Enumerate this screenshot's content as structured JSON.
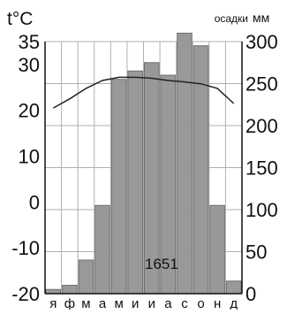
{
  "chart_data": {
    "type": "bar",
    "categories": [
      "я",
      "ф",
      "м",
      "а",
      "м",
      "и",
      "и",
      "а",
      "с",
      "о",
      "н",
      "д"
    ],
    "left_axis": {
      "label": "t°C",
      "min": -20,
      "max": 35,
      "ticks": [
        "35",
        "30",
        "20",
        "10",
        "0",
        "-10",
        "-20"
      ]
    },
    "right_axis": {
      "label": "осадки",
      "unit": "мм",
      "min": 0,
      "max": 300,
      "ticks": [
        "300",
        "250",
        "200",
        "150",
        "100",
        "50",
        "0"
      ]
    },
    "series": [
      {
        "kind": "bar",
        "axis": "right",
        "values": [
          5,
          10,
          40,
          105,
          255,
          265,
          275,
          260,
          310,
          295,
          105,
          15
        ]
      },
      {
        "kind": "line",
        "axis": "left",
        "values": [
          20.5,
          22.5,
          24.8,
          26.5,
          27.2,
          27.2,
          27.0,
          26.5,
          26.2,
          25.8,
          24.8,
          21.5
        ]
      }
    ],
    "annotation": "1651",
    "grid": true,
    "colors": {
      "bar_fill": "#999999",
      "bar_stroke": "#707070",
      "line": "#222222",
      "grid": "#b0b0b0",
      "axis": "#111111",
      "text": "#111111"
    }
  }
}
